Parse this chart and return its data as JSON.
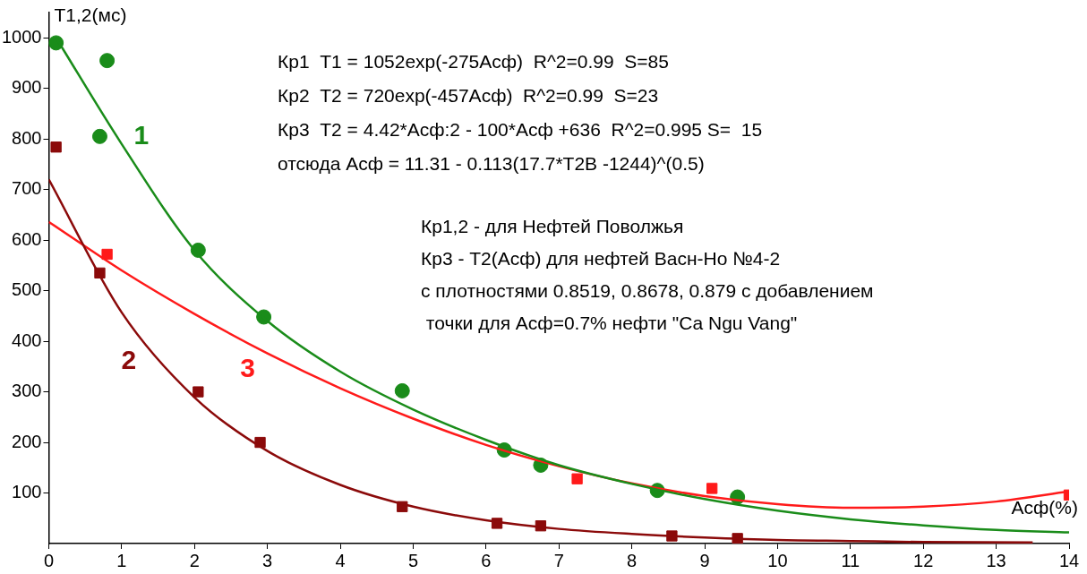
{
  "chart_data": {
    "type": "scatter",
    "ylabel": "T1,2(мс)",
    "xlabel": "Асф(%)",
    "xlim": [
      0,
      14
    ],
    "ylim": [
      0,
      1050
    ],
    "xticks": [
      0,
      1,
      2,
      3,
      4,
      5,
      6,
      7,
      8,
      9,
      10,
      11,
      12,
      13,
      14
    ],
    "yticks": [
      100,
      200,
      300,
      400,
      500,
      600,
      700,
      800,
      900,
      1000
    ],
    "grid": false,
    "legend": false,
    "series": [
      {
        "type": "line",
        "name": "1",
        "marker": "none",
        "color": "#1a8c1a",
        "x": [
          0.1,
          1,
          2,
          3,
          4,
          5,
          6,
          7,
          8,
          9,
          10,
          11,
          12,
          13,
          14
        ],
        "values": [
          1000,
          790,
          580,
          440,
          340,
          265,
          205,
          155,
          118,
          88,
          65,
          48,
          36,
          27,
          22
        ]
      },
      {
        "type": "line",
        "name": "2",
        "marker": "none",
        "color": "#8b0a0a",
        "x": [
          0,
          1,
          2,
          3,
          4,
          5,
          6,
          7,
          8,
          9,
          10,
          11,
          12,
          13.5
        ],
        "values": [
          720,
          457,
          289,
          183,
          116,
          73,
          46,
          29,
          19,
          12,
          7,
          5,
          3,
          2
        ]
      },
      {
        "type": "line",
        "name": "3",
        "marker": "none",
        "color": "#ff1a1a",
        "x": [
          0,
          1,
          2,
          3,
          4,
          5,
          6,
          7,
          8,
          9,
          10,
          11,
          12,
          13,
          14
        ],
        "values": [
          636,
          540,
          454,
          376,
          307,
          247,
          195,
          153,
          119,
          94,
          78,
          71,
          73,
          83,
          103
        ]
      },
      {
        "marker": "circle",
        "color": "#1a8c1a",
        "x": [
          0.1,
          0.8,
          0.7,
          2.05,
          2.95,
          4.85,
          6.25,
          6.75,
          8.35,
          9.45
        ],
        "values": [
          990,
          955,
          805,
          580,
          448,
          302,
          185,
          155,
          105,
          92
        ]
      },
      {
        "marker": "square",
        "color": "#8b0a0a",
        "x": [
          0.1,
          0.7,
          2.05,
          2.9,
          4.85,
          6.15,
          6.75,
          8.55,
          9.45
        ],
        "values": [
          784,
          535,
          300,
          200,
          73,
          40,
          35,
          15,
          10
        ]
      },
      {
        "marker": "square",
        "color": "#ff1a1a",
        "x": [
          0.8,
          7.25,
          9.1,
          14
        ],
        "values": [
          572,
          128,
          109,
          96
        ]
      }
    ],
    "annotations": [
      "Кр1  T1 = 1052exp(-275Асф)  R^2=0.99  S=85",
      "Кр2  T2 = 720exp(-457Асф)  R^2=0.99  S=23",
      "Кр3  T2 = 4.42*Асф:2 - 100*Асф +636  R^2=0.995 S=  15",
      "отсюда Асф = 11.31 - 0.113(17.7*T2В -1244)^(0.5)",
      "Кр1,2 - для Нефтей Поволжья",
      "Кр3 - T2(Асф) для нефтей Васн-Ho №4-2",
      "с плотностями 0.8519, 0.8678, 0.879 с добавлением",
      " точки для Асф=0.7% нефти \"Ca Ngu Vang\""
    ]
  }
}
